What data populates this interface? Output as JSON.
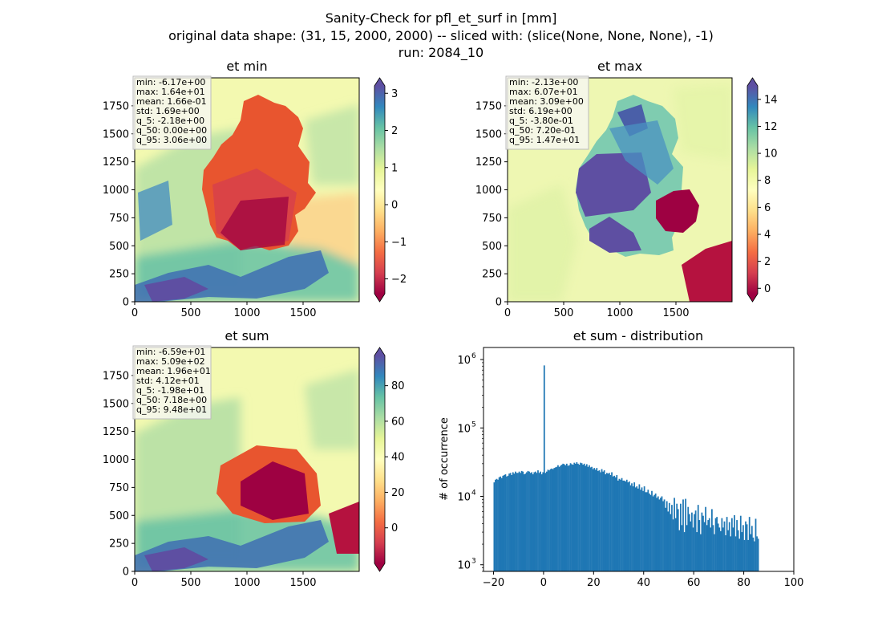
{
  "figure": {
    "suptitle": [
      "Sanity-Check for pfl_et_surf in [mm]",
      "original data shape: (31, 15, 2000, 2000) -- sliced with: (slice(None, None, None), -1)",
      "run: 2084_10"
    ]
  },
  "chart_data": [
    {
      "type": "heatmap",
      "title": "et min",
      "xlim": [
        0,
        2000
      ],
      "ylim": [
        0,
        2000
      ],
      "xticks": [
        "0",
        "500",
        "1000",
        "1500"
      ],
      "yticks": [
        "0",
        "250",
        "500",
        "750",
        "1000",
        "1250",
        "1500",
        "1750"
      ],
      "colormap": "Spectral",
      "colorbar": {
        "min": -2.4,
        "max": 3.2,
        "ticks": [
          "−2",
          "−1",
          "0",
          "1",
          "2",
          "3"
        ],
        "tick_values": [
          -2,
          -1,
          0,
          1,
          2,
          3
        ],
        "extend": "both"
      },
      "stats": [
        "min: -6.17e+00",
        "max: 1.64e+01",
        "mean: 1.66e-01",
        "std: 1.69e+00",
        "q_5: -2.18e+00",
        "q_50: 0.00e+00",
        "q_95: 3.06e+00"
      ]
    },
    {
      "type": "heatmap",
      "title": "et max",
      "xlim": [
        0,
        2000
      ],
      "ylim": [
        0,
        2000
      ],
      "xticks": [
        "0",
        "500",
        "1000",
        "1500"
      ],
      "yticks": [
        "0",
        "250",
        "500",
        "750",
        "1000",
        "1250",
        "1500",
        "1750"
      ],
      "colormap": "Spectral",
      "colorbar": {
        "min": -0.4,
        "max": 15,
        "ticks": [
          "0",
          "2",
          "4",
          "6",
          "8",
          "10",
          "12",
          "14"
        ],
        "tick_values": [
          0,
          2,
          4,
          6,
          8,
          10,
          12,
          14
        ],
        "extend": "both"
      },
      "stats": [
        "min: -2.13e+00",
        "max: 6.07e+01",
        "mean: 3.09e+00",
        "std: 6.19e+00",
        "q_5: -3.80e-01",
        "q_50: 7.20e-01",
        "q_95: 1.47e+01"
      ]
    },
    {
      "type": "heatmap",
      "title": "et sum",
      "xlim": [
        0,
        2000
      ],
      "ylim": [
        0,
        2000
      ],
      "xticks": [
        "0",
        "500",
        "1000",
        "1500"
      ],
      "yticks": [
        "0",
        "250",
        "500",
        "750",
        "1000",
        "1250",
        "1500",
        "1750"
      ],
      "colormap": "Spectral",
      "colorbar": {
        "min": -20,
        "max": 97,
        "ticks": [
          "0",
          "20",
          "40",
          "60",
          "80"
        ],
        "tick_values": [
          0,
          20,
          40,
          60,
          80
        ],
        "extend": "both"
      },
      "stats": [
        "min: -6.59e+01",
        "max: 5.09e+02",
        "mean: 1.96e+01",
        "std: 4.12e+01",
        "q_5: -1.98e+01",
        "q_50: 7.18e+00",
        "q_95: 9.48e+01"
      ]
    },
    {
      "type": "bar",
      "title": "et sum - distribution",
      "ylabel": "# of occurrence",
      "yscale": "log",
      "xlim": [
        -24,
        100
      ],
      "ylim": [
        800,
        1500000
      ],
      "xticks": [
        "−20",
        "0",
        "20",
        "40",
        "60",
        "80",
        "100"
      ],
      "xtick_values": [
        -20,
        0,
        20,
        40,
        60,
        80,
        100
      ],
      "yticks": [
        "10",
        "10",
        "10",
        "10"
      ],
      "ytick_exponents": [
        "3",
        "4",
        "5",
        "6"
      ],
      "ytick_values": [
        1000,
        10000,
        100000,
        1000000
      ],
      "bar_color": "#1f77b4",
      "bin_start": -20,
      "bin_width": 0.5,
      "values": [
        16000,
        17500,
        18000,
        17500,
        19000,
        19500,
        18500,
        20000,
        20500,
        21000,
        19500,
        20000,
        21500,
        22000,
        20500,
        22500,
        21500,
        23000,
        22000,
        22000,
        23000,
        22000,
        23500,
        23000,
        21000,
        21500,
        22500,
        23500,
        23000,
        22000,
        22500,
        21000,
        22500,
        23000,
        22000,
        24000,
        22000,
        23000,
        21000,
        22500,
        820000,
        22000,
        23000,
        24500,
        24000,
        25000,
        25500,
        25000,
        26000,
        26500,
        27000,
        28500,
        27000,
        28000,
        29000,
        30000,
        29500,
        28500,
        30000,
        28000,
        28500,
        30500,
        29500,
        29000,
        31000,
        30000,
        31500,
        30000,
        29000,
        31000,
        30500,
        29000,
        30000,
        28000,
        29500,
        27000,
        28500,
        26500,
        27000,
        25000,
        26000,
        24500,
        26000,
        23500,
        24000,
        22500,
        25000,
        23000,
        24000,
        21000,
        22000,
        21500,
        22000,
        20500,
        22500,
        19500,
        20000,
        19000,
        20500,
        17000,
        18000,
        17500,
        18500,
        17000,
        17000,
        16500,
        17500,
        16000,
        16500,
        14500,
        15500,
        14000,
        16000,
        13500,
        14000,
        13000,
        15000,
        12500,
        13500,
        12000,
        14000,
        11500,
        11500,
        12500,
        11000,
        10500,
        12000,
        10000,
        10500,
        11000,
        9500,
        10000,
        9000,
        9500,
        10000,
        8500,
        9000,
        6800,
        8500,
        6000,
        8000,
        5500,
        7500,
        4600,
        9500,
        4800,
        7800,
        6500,
        3200,
        7800,
        3800,
        9000,
        3000,
        9200,
        3800,
        7000,
        5500,
        4300,
        5800,
        3500,
        5500,
        6200,
        3000,
        7500,
        4500,
        2800,
        5800,
        5200,
        4200,
        7000,
        3800,
        4500,
        4800,
        3500,
        6500,
        3800,
        2800,
        4800,
        5000,
        4000,
        3500,
        3100,
        4800,
        3500,
        4300,
        2700,
        5000,
        3200,
        4200,
        2600,
        4800,
        3500,
        5300,
        2600,
        4500,
        3200,
        2400,
        5200,
        3000,
        3800,
        2300,
        4300,
        3900,
        2300,
        5000,
        2800,
        3700,
        2500,
        2200,
        4700,
        2600,
        2400
      ]
    }
  ]
}
